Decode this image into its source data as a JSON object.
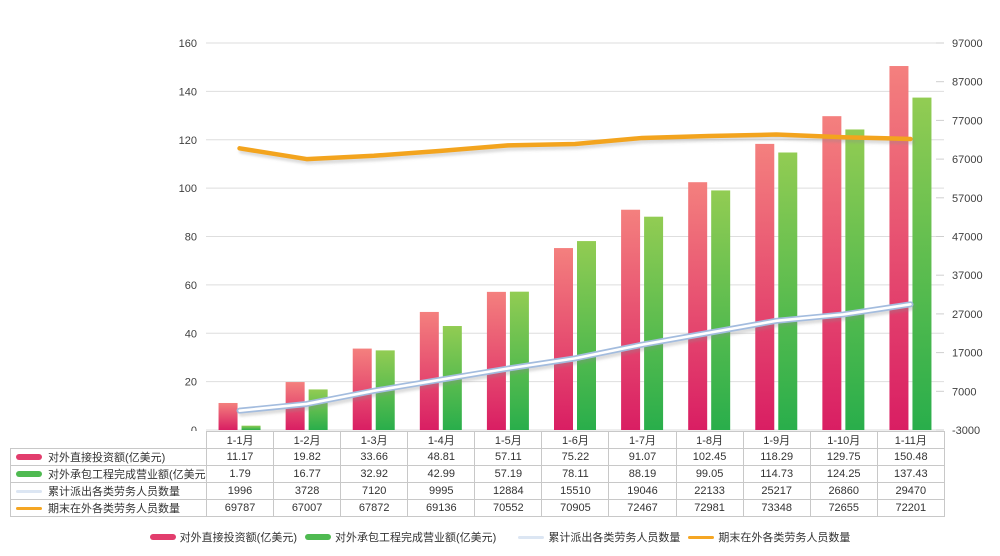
{
  "chart_data": {
    "type": "combo",
    "title": "",
    "categories": [
      "1-1月",
      "1-2月",
      "1-3月",
      "1-4月",
      "1-5月",
      "1-6月",
      "1-7月",
      "1-8月",
      "1-9月",
      "1-10月",
      "1-11月"
    ],
    "series": [
      {
        "name": "对外直接投资额(亿美元)",
        "chart_type": "bar",
        "axis": "left",
        "values": [
          11.17,
          19.82,
          33.66,
          48.81,
          57.11,
          75.22,
          91.07,
          102.45,
          118.29,
          129.75,
          150.48
        ],
        "color_top": "#F4807E",
        "color_bottom": "#D91E63",
        "swatch_color": "#E23D6D"
      },
      {
        "name": "对外承包工程完成营业额(亿美元)",
        "chart_type": "bar",
        "axis": "left",
        "values": [
          1.79,
          16.77,
          32.92,
          42.99,
          57.19,
          78.11,
          88.19,
          99.05,
          114.73,
          124.25,
          137.43
        ],
        "color_top": "#92CC53",
        "color_bottom": "#29AE4B",
        "swatch_color": "#4FBA51"
      },
      {
        "name": "累计派出各类劳务人员数量",
        "chart_type": "line",
        "axis": "right",
        "values": [
          1996,
          3728,
          7120,
          9995,
          12884,
          15510,
          19046,
          22133,
          25217,
          26860,
          29470
        ],
        "line_color": "#A3BCDE",
        "line_core_color": "#FFFFFF",
        "swatch_color": "#DCE6F3"
      },
      {
        "name": "期末在外各类劳务人员数量",
        "chart_type": "line",
        "axis": "right",
        "values": [
          69787,
          67007,
          67872,
          69136,
          70552,
          70905,
          72467,
          72981,
          73348,
          72655,
          72201
        ],
        "line_color": "#F3A41E",
        "swatch_color": "#F5A623"
      }
    ],
    "left_axis": {
      "min": 0,
      "max": 160,
      "step": 20,
      "tick_labels": [
        "0",
        "20",
        "40",
        "60",
        "80",
        "100",
        "120",
        "140",
        "160"
      ]
    },
    "right_axis": {
      "min": -3000,
      "max": 97000,
      "step": 10000,
      "tick_labels": [
        "-3000",
        "7000",
        "17000",
        "27000",
        "37000",
        "47000",
        "57000",
        "67000",
        "77000",
        "87000",
        "97000"
      ]
    },
    "grid": true,
    "legend_position": "bottom",
    "colors": {
      "grid": "#DEDEDE",
      "tick": "#CFCFCF",
      "axis_text": "#3F3F3F",
      "table_border": "#C8C8C8",
      "table_text": "#333333",
      "background": "#FFFFFF"
    }
  }
}
